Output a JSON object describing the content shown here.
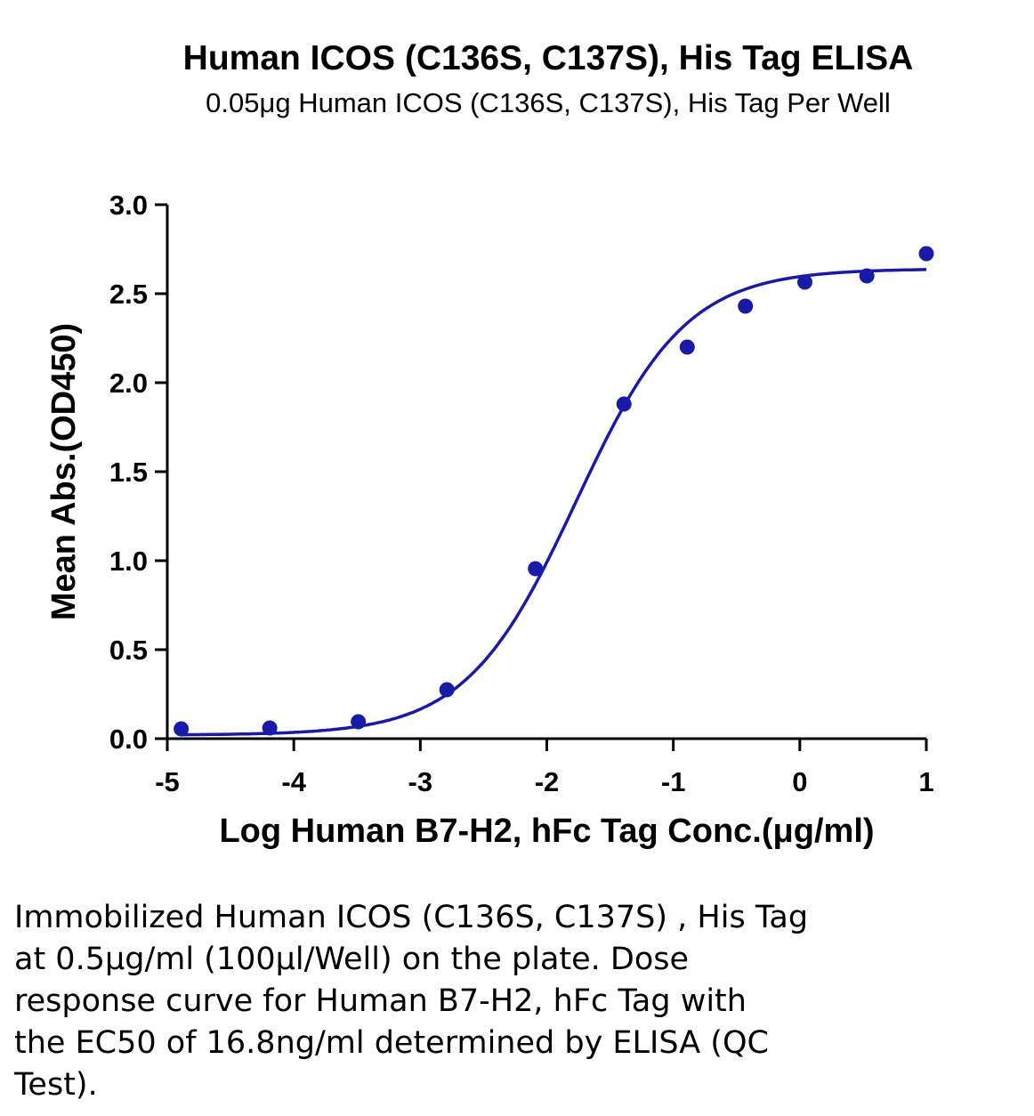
{
  "chart_data": {
    "type": "scatter",
    "title": "Human ICOS (C136S, C137S), His Tag ELISA",
    "subtitle": "0.05μg Human ICOS (C136S, C137S), His Tag Per Well",
    "xlabel": "Log Human B7-H2, hFc Tag Conc.(μg/ml)",
    "ylabel": "Mean Abs.(OD450)",
    "xlim": [
      -5,
      1
    ],
    "ylim": [
      0,
      3.0
    ],
    "xticks": [
      "-5",
      "-4",
      "-3",
      "-2",
      "-1",
      "0",
      "1"
    ],
    "yticks": [
      "0.0",
      "0.5",
      "1.0",
      "1.5",
      "2.0",
      "2.5",
      "3.0"
    ],
    "grid": false,
    "color": "#1a1aa8",
    "series": [
      {
        "x": [
          -4.89,
          -4.19,
          -3.49,
          -2.79,
          -2.09,
          -1.39,
          -0.89,
          -0.43,
          0.04,
          0.53,
          1.0
        ],
        "y": [
          0.055,
          0.06,
          0.095,
          0.275,
          0.955,
          1.88,
          2.2,
          2.43,
          2.565,
          2.6,
          2.725
        ]
      }
    ],
    "fit": {
      "model": "4PL",
      "bottom": 0.02,
      "top": 2.64,
      "logEC50": -1.77,
      "hill": 1.0
    }
  },
  "caption": {
    "lines": [
      "Immobilized Human ICOS (C136S, C137S) , His Tag",
      "at 0.5μg/ml (100μl/Well) on the plate. Dose",
      "response curve for Human B7-H2, hFc Tag with",
      "the EC50 of 16.8ng/ml determined by ELISA (QC",
      "Test)."
    ]
  }
}
